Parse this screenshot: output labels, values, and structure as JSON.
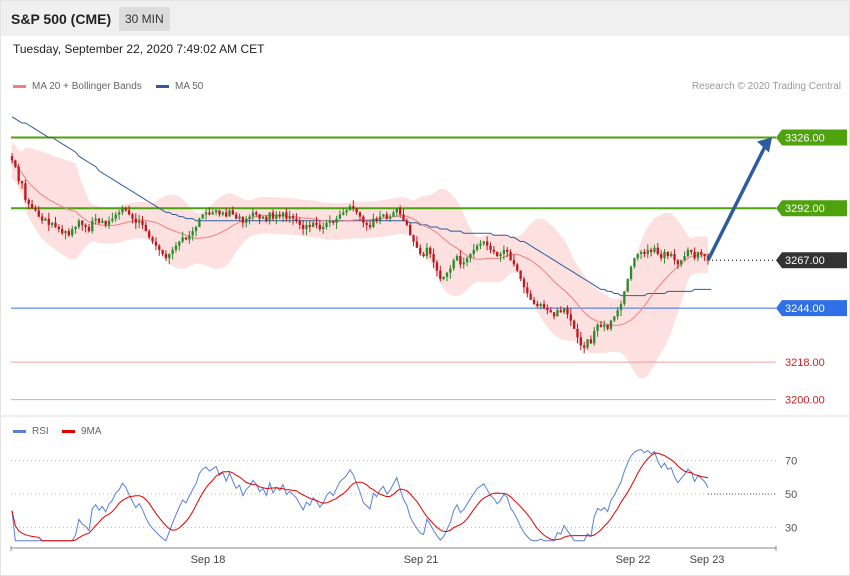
{
  "header": {
    "title": "S&P 500 (CME)",
    "interval": "30 MIN",
    "datetime": "Tuesday, September 22, 2020 7:49:02 AM CET"
  },
  "legend": {
    "ma20": {
      "label": "MA 20 + Bollinger Bands",
      "color": "#f08080"
    },
    "ma50": {
      "label": "MA 50",
      "color": "#2e5c9e"
    },
    "rsi": {
      "label": "RSI",
      "color": "#5b7fd6"
    },
    "ma9": {
      "label": "9MA",
      "color": "#e00000"
    }
  },
  "credit": "Research © 2020 Trading Central",
  "colors": {
    "up": "#2e8b2e",
    "down": "#c0181f",
    "resistance": "#4ea20d",
    "support": "#3a6fe0",
    "support_light": "#f0a0a0",
    "current": "#333333",
    "arrow": "#2e5c9e"
  },
  "chart_data": [
    {
      "type": "candlestick",
      "title": "S&P 500 (CME)",
      "ylim": [
        3195,
        3345
      ],
      "x_ticks": [
        "Sep 18",
        "Sep 21",
        "Sep 22",
        "Sep 23"
      ],
      "levels": [
        {
          "label": "3326.00",
          "value": 3326,
          "kind": "resistance"
        },
        {
          "label": "3292.00",
          "value": 3292,
          "kind": "resistance"
        },
        {
          "label": "3267.00",
          "value": 3267,
          "kind": "current"
        },
        {
          "label": "3244.00",
          "value": 3244,
          "kind": "support"
        },
        {
          "label": "3218.00",
          "value": 3218,
          "kind": "support_light"
        },
        {
          "label": "3200.00",
          "value": 3200,
          "kind": "support_light"
        }
      ],
      "projection": {
        "from": 3267,
        "to": 3326
      },
      "close": [
        3315,
        3312,
        3305,
        3304,
        3296,
        3294,
        3292,
        3291,
        3288,
        3286,
        3287,
        3284,
        3285,
        3283,
        3282,
        3280,
        3281,
        3279,
        3282,
        3283,
        3286,
        3284,
        3283,
        3281,
        3286,
        3287,
        3285,
        3286,
        3284,
        3286,
        3287,
        3289,
        3290,
        3292,
        3291,
        3289,
        3287,
        3285,
        3286,
        3284,
        3281,
        3278,
        3276,
        3274,
        3272,
        3270,
        3268,
        3270,
        3272,
        3274,
        3276,
        3278,
        3277,
        3279,
        3281,
        3283,
        3287,
        3289,
        3290,
        3289,
        3290,
        3291,
        3289,
        3290,
        3288,
        3291,
        3289,
        3287,
        3288,
        3285,
        3287,
        3288,
        3290,
        3289,
        3287,
        3288,
        3286,
        3290,
        3287,
        3289,
        3288,
        3290,
        3287,
        3288,
        3287,
        3286,
        3284,
        3282,
        3284,
        3283,
        3285,
        3284,
        3282,
        3283,
        3285,
        3286,
        3285,
        3287,
        3289,
        3290,
        3291,
        3293,
        3292,
        3290,
        3288,
        3285,
        3284,
        3283,
        3287,
        3286,
        3288,
        3289,
        3287,
        3288,
        3290,
        3292,
        3289,
        3286,
        3284,
        3279,
        3276,
        3273,
        3270,
        3269,
        3273,
        3270,
        3266,
        3262,
        3258,
        3259,
        3261,
        3263,
        3267,
        3269,
        3265,
        3266,
        3268,
        3270,
        3272,
        3274,
        3275,
        3276,
        3274,
        3272,
        3271,
        3269,
        3270,
        3272,
        3271,
        3267,
        3265,
        3262,
        3258,
        3254,
        3251,
        3248,
        3246,
        3245,
        3246,
        3244,
        3243,
        3242,
        3240,
        3243,
        3242,
        3244,
        3241,
        3238,
        3234,
        3230,
        3226,
        3225,
        3229,
        3227,
        3233,
        3236,
        3235,
        3236,
        3234,
        3238,
        3240,
        3243,
        3246,
        3252,
        3258,
        3264,
        3268,
        3270,
        3271,
        3270,
        3272,
        3271,
        3273,
        3270,
        3268,
        3271,
        3269,
        3270,
        3267,
        3265,
        3267,
        3269,
        3272,
        3271,
        3268,
        3271,
        3270,
        3269,
        3267
      ],
      "ma50": [
        3336,
        3335,
        3334,
        3333,
        3333,
        3332,
        3331,
        3330,
        3329,
        3328,
        3327,
        3326,
        3326,
        3325,
        3324,
        3323,
        3322,
        3321,
        3320,
        3319,
        3317,
        3316,
        3315,
        3314,
        3313,
        3312,
        3310,
        3309,
        3308,
        3307,
        3306,
        3305,
        3304,
        3303,
        3302,
        3301,
        3300,
        3299,
        3298,
        3297,
        3296,
        3295,
        3294,
        3293,
        3292,
        3291,
        3290,
        3290,
        3289,
        3289,
        3288,
        3288,
        3287,
        3287,
        3287,
        3286,
        3286,
        3286,
        3286,
        3286,
        3286,
        3286,
        3286,
        3286,
        3286,
        3286,
        3286,
        3286,
        3286,
        3286,
        3286,
        3286,
        3286,
        3286,
        3286,
        3286,
        3286,
        3286,
        3286,
        3286,
        3286,
        3286,
        3286,
        3286,
        3286,
        3286,
        3286,
        3286,
        3286,
        3286,
        3286,
        3286,
        3286,
        3286,
        3286,
        3286,
        3286,
        3286,
        3286,
        3286,
        3286,
        3286,
        3286,
        3286,
        3286,
        3286,
        3286,
        3286,
        3286,
        3286,
        3286,
        3286,
        3286,
        3286,
        3286,
        3286,
        3286,
        3286,
        3286,
        3285,
        3285,
        3285,
        3284,
        3284,
        3284,
        3283,
        3283,
        3283,
        3282,
        3282,
        3282,
        3281,
        3281,
        3281,
        3281,
        3280,
        3280,
        3280,
        3280,
        3280,
        3280,
        3280,
        3280,
        3280,
        3279,
        3279,
        3279,
        3279,
        3279,
        3278,
        3278,
        3277,
        3276,
        3276,
        3275,
        3274,
        3273,
        3272,
        3271,
        3270,
        3269,
        3268,
        3267,
        3266,
        3265,
        3264,
        3263,
        3262,
        3261,
        3260,
        3259,
        3258,
        3257,
        3256,
        3255,
        3254,
        3253,
        3253,
        3252,
        3252,
        3251,
        3251,
        3250,
        3250,
        3250,
        3250,
        3250,
        3250,
        3250,
        3250,
        3251,
        3251,
        3251,
        3251,
        3251,
        3251,
        3252,
        3252,
        3252,
        3252,
        3252,
        3252,
        3252,
        3252,
        3253,
        3253,
        3253,
        3253,
        3253,
        3253
      ],
      "rsi": {
        "ylim": [
          20,
          80
        ],
        "ticks": [
          70,
          50,
          30
        ],
        "last": 50
      }
    }
  ]
}
